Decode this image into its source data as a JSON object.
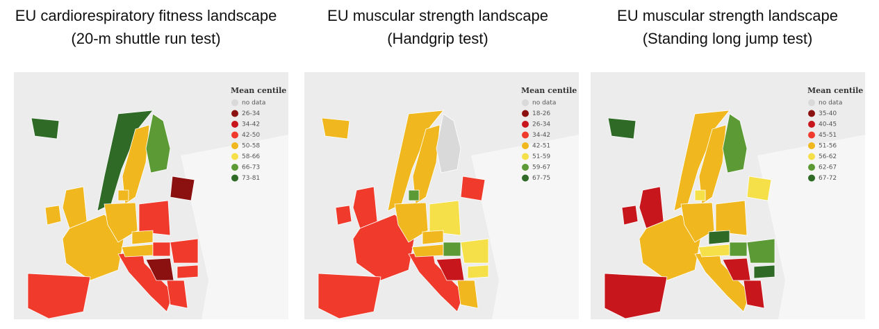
{
  "panels": [
    {
      "title": [
        "EU cardiorespiratory fitness landscape",
        "(20-m shuttle run test)"
      ],
      "legend": {
        "title": "Mean centile",
        "items": [
          {
            "label": "no data",
            "color": "#d9d9d9"
          },
          {
            "label": "26-34",
            "color": "#8b1010"
          },
          {
            "label": "34-42",
            "color": "#c8161d"
          },
          {
            "label": "42-50",
            "color": "#f03a2b"
          },
          {
            "label": "50-58",
            "color": "#f0b81e"
          },
          {
            "label": "58-66",
            "color": "#f5e04a"
          },
          {
            "label": "66-73",
            "color": "#5c9a35"
          },
          {
            "label": "73-81",
            "color": "#2f6b27"
          }
        ]
      }
    },
    {
      "title": [
        "EU muscular strength landscape",
        "(Handgrip test)"
      ],
      "legend": {
        "title": "Mean centile",
        "items": [
          {
            "label": "no data",
            "color": "#d9d9d9"
          },
          {
            "label": "18-26",
            "color": "#8b1010"
          },
          {
            "label": "26-34",
            "color": "#c8161d"
          },
          {
            "label": "34-42",
            "color": "#f03a2b"
          },
          {
            "label": "42-51",
            "color": "#f0b81e"
          },
          {
            "label": "51-59",
            "color": "#f5e04a"
          },
          {
            "label": "59-67",
            "color": "#5c9a35"
          },
          {
            "label": "67-75",
            "color": "#2f6b27"
          }
        ]
      }
    },
    {
      "title": [
        "EU muscular strength landscape",
        "(Standing long jump test)"
      ],
      "legend": {
        "title": "Mean centile",
        "items": [
          {
            "label": "no data",
            "color": "#d9d9d9"
          },
          {
            "label": "35-40",
            "color": "#8b1010"
          },
          {
            "label": "40-45",
            "color": "#c8161d"
          },
          {
            "label": "45-51",
            "color": "#f03a2b"
          },
          {
            "label": "51-56",
            "color": "#f0b81e"
          },
          {
            "label": "56-62",
            "color": "#f5e04a"
          },
          {
            "label": "62-67",
            "color": "#5c9a35"
          },
          {
            "label": "67-72",
            "color": "#2f6b27"
          }
        ]
      }
    }
  ]
}
